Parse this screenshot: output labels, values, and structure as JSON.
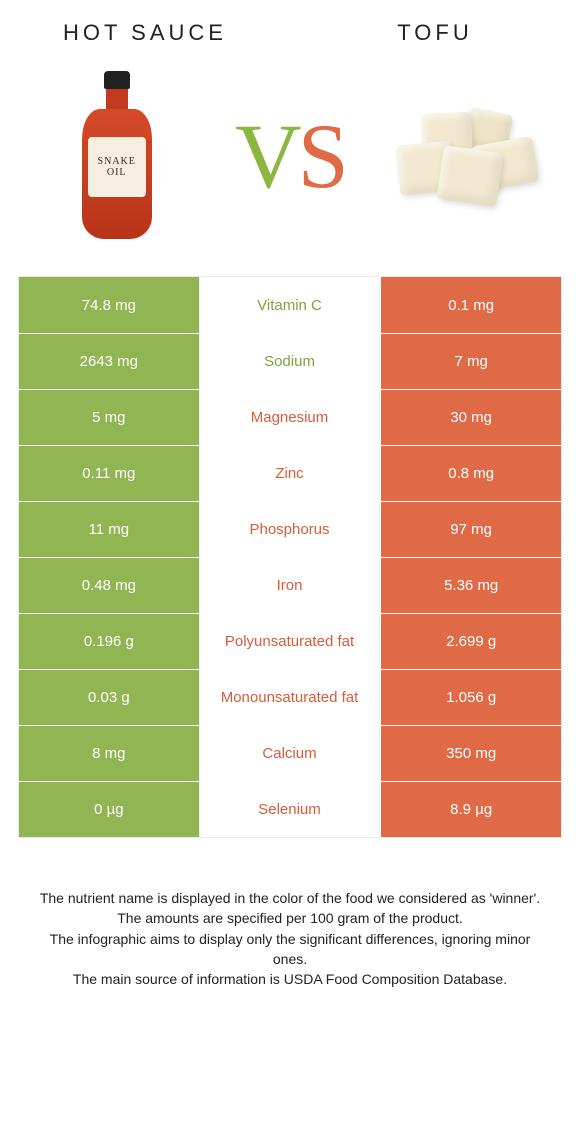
{
  "header": {
    "left_title": "Hot sauce",
    "right_title": "Tofu",
    "vs_v": "V",
    "vs_s": "S",
    "bottle_label_brand": "SNAKE OIL"
  },
  "colors": {
    "left_bg": "#92b554",
    "right_bg": "#e06a46",
    "mid_green": "#7ca43f",
    "mid_orange": "#d65c39"
  },
  "rows": [
    {
      "left": "74.8 mg",
      "label": "Vitamin C",
      "right": "0.1 mg",
      "winner": "left"
    },
    {
      "left": "2643 mg",
      "label": "Sodium",
      "right": "7 mg",
      "winner": "left"
    },
    {
      "left": "5 mg",
      "label": "Magnesium",
      "right": "30 mg",
      "winner": "right"
    },
    {
      "left": "0.11 mg",
      "label": "Zinc",
      "right": "0.8 mg",
      "winner": "right"
    },
    {
      "left": "11 mg",
      "label": "Phosphorus",
      "right": "97 mg",
      "winner": "right"
    },
    {
      "left": "0.48 mg",
      "label": "Iron",
      "right": "5.36 mg",
      "winner": "right"
    },
    {
      "left": "0.196 g",
      "label": "Polyunsaturated fat",
      "right": "2.699 g",
      "winner": "right"
    },
    {
      "left": "0.03 g",
      "label": "Monounsaturated fat",
      "right": "1.056 g",
      "winner": "right"
    },
    {
      "left": "8 mg",
      "label": "Calcium",
      "right": "350 mg",
      "winner": "right"
    },
    {
      "left": "0 µg",
      "label": "Selenium",
      "right": "8.9 µg",
      "winner": "right"
    }
  ],
  "footnotes": [
    "The nutrient name is displayed in the color of the food we considered as 'winner'.",
    "The amounts are specified per 100 gram of the product.",
    "The infographic aims to display only the significant differences, ignoring minor ones.",
    "The main source of information is USDA Food Composition Database."
  ]
}
